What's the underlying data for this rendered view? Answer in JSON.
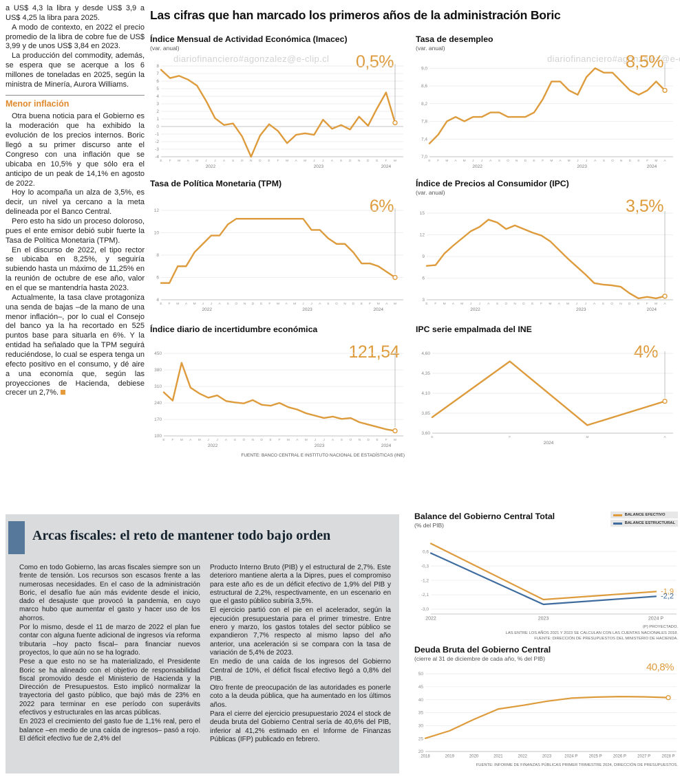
{
  "watermark": "diariofinanciero#agonzalez@e-clip.cl",
  "colors": {
    "accent_orange": "#DE9B3C",
    "steel_blue": "#3F6C9E",
    "subhead_orange": "#E08A2E",
    "box_bg": "#D9DBDD",
    "accent_bar_blue": "#56799B"
  },
  "main": {
    "title": "Las cifras que han marcado los primeros años de la administración Boric",
    "source": "FUENTE: BANCO CENTRAL E INSTITUTO NACIONAL DE ESTADÍSTICAS (INE)"
  },
  "left_article": {
    "paragraphs_top": [
      "a US$ 4,3 la libra y desde US$ 3,9 a US$ 4,25 la libra para 2025.",
      "A modo de contexto, en 2022 el precio promedio de la libra de cobre fue de US$ 3,99 y de unos US$ 3,84 en 2023.",
      "La producción del commodity, además, se espera que se acerque a los 6 millones de toneladas en 2025, según la ministra de Minería, Aurora Williams."
    ],
    "subhead": "Menor inflación",
    "paragraphs_bottom": [
      "Otra buena noticia para el Gobierno es la moderación que ha exhibido la evolución de los precios internos. Boric llegó a su primer discurso ante el Congreso con una inflación que se ubicaba en 10,5% y que sólo era el anticipo de un peak de 14,1% en agosto de 2022.",
      "Hoy lo acompaña un alza de 3,5%, es decir, un nivel ya cercano a la meta delineada por el Banco Central.",
      "Pero esto ha sido un proceso doloroso, pues el ente emisor debió subir fuerte la Tasa de Política Monetaria (TPM).",
      "En el discurso de 2022, el tipo rector se ubicaba en 8,25%, y seguiría subiendo hasta un máximo de 11,25% en la reunión de octubre de ese año, valor en el que se mantendría hasta 2023.",
      "Actualmente, la tasa clave protagoniza una senda de bajas –de la mano de una menor inflación–, por lo cual el Consejo del banco ya la ha recortado en 525 puntos base para situarla en 6%. Y la entidad ha señalado que la TPM seguirá reduciéndose, lo cual se espera tenga un efecto positivo en el consumo, y dé aire a una economía que, según las proyecciones de Hacienda, debiese crecer un 2,7%."
    ]
  },
  "fiscal": {
    "title": "Arcas fiscales: el reto de mantener todo bajo orden",
    "col1": [
      "Como en todo Gobierno, las arcas fiscales siempre son un frente de tensión. Los recursos son escasos frente a las numerosas necesidades. En el caso de la administración Boric, el desafío fue aún más evidente desde el inicio, dado el desajuste que provocó la pandemia, en cuyo marco hubo que aumentar el gasto y hacer uso de los ahorros.",
      "Por lo mismo, desde el 11 de marzo de 2022 el plan fue contar con alguna fuente adicional de ingresos vía reforma tributaria –hoy pacto fiscal– para financiar nuevos proyectos, lo que aún no se ha logrado.",
      "Pese a que esto no se ha materializado, el Presidente Boric se ha alineado con el objetivo de responsabilidad fiscal promovido desde el Ministerio de Hacienda y la Dirección de Presupuestos. Esto implicó normalizar la trayectoria del gasto público, que bajó más de 23% en 2022 para terminar en ese período con superávits efectivos y estructurales en las arcas públicas.",
      "En 2023 el crecimiento del gasto fue de 1,1% real, pero el balance –en medio de una caída de ingresos– pasó a rojo. El déficit efectivo fue de 2,4% del"
    ],
    "col2": [
      "Producto Interno Bruto (PIB) y el estructural de 2,7%. Este deterioro mantiene alerta a la Dipres, pues el compromiso para este año es de un déficit efectivo de 1,9% del PIB y estructural de 2,2%, respectivamente, en un escenario en que el gasto público subiría 3,5%.",
      "El ejercicio partió con el pie en el acelerador, según la ejecución presupuestaria para el primer trimestre. Entre enero y marzo, los gastos totales del sector público se expandieron 7,7% respecto al mismo lapso del año anterior, una aceleración si se compara con la tasa de variación de 5,4% de 2023.",
      "En medio de una caída de los ingresos del Gobierno Central de 10%, el déficit fiscal efectivo llegó a 0,8% del PIB.",
      "Otro frente de preocupación de las autoridades es ponerle coto a la deuda pública, que ha aumentado en los últimos años.",
      "Para el cierre del ejercicio presupuestario 2024 el stock de deuda bruta del Gobierno Central sería de 40,6% del PIB, inferior al 41,2% estimado en el Informe de Finanzas Públicas (IFP) publicado en febrero."
    ]
  },
  "chart_data": [
    {
      "type": "line",
      "title": "Índice Mensual de Actividad Económica (Imacec)",
      "subtitle": "(var. anual)",
      "highlight": "0,5%",
      "ylim": [
        -4,
        8
      ],
      "ytick_vals": [
        8,
        7,
        6,
        5,
        4,
        3,
        2,
        1,
        0,
        -1,
        -2,
        -3,
        -4
      ],
      "ytick_labels": [
        "8",
        "7",
        "6",
        "5",
        "4",
        "3",
        "2",
        "1",
        "0",
        "-1",
        "-2",
        "-3",
        "-4"
      ],
      "x_groups": [
        {
          "year": "2022",
          "months": [
            "E",
            "F",
            "M",
            "A",
            "M",
            "J",
            "J",
            "A",
            "S",
            "O",
            "N",
            "D"
          ]
        },
        {
          "year": "2023",
          "months": [
            "E",
            "F",
            "M",
            "A",
            "M",
            "J",
            "J",
            "A",
            "S",
            "O",
            "N",
            "D"
          ]
        },
        {
          "year": "2024",
          "months": [
            "E",
            "F",
            "M"
          ]
        }
      ],
      "guide": true,
      "series": [
        {
          "name": "Imacec var. anual",
          "color": "#DE9B3C",
          "width": 2.4,
          "values": [
            7.5,
            6.4,
            6.7,
            6.2,
            5.4,
            3.4,
            1.1,
            0.2,
            0.4,
            -1.3,
            -4.0,
            -1.2,
            0.3,
            -0.6,
            -2.2,
            -1.1,
            -0.9,
            -1.1,
            0.9,
            -0.3,
            0.2,
            -0.4,
            1.3,
            0.1,
            2.4,
            4.5,
            0.5
          ]
        }
      ]
    },
    {
      "type": "line",
      "title": "Tasa de desempleo",
      "subtitle": "(var. anual)",
      "highlight": "8,5%",
      "ylim": [
        7.0,
        9.05
      ],
      "ytick_vals": [
        9.0,
        8.6,
        8.2,
        7.8,
        7.4,
        7.0
      ],
      "ytick_labels": [
        "9,0",
        "8,6",
        "8,2",
        "7,8",
        "7,4",
        "7,0"
      ],
      "x_groups": [
        {
          "year": "2022",
          "months": [
            "E",
            "F",
            "M",
            "A",
            "M",
            "J",
            "J",
            "A",
            "S",
            "O",
            "N",
            "D"
          ]
        },
        {
          "year": "2023",
          "months": [
            "E",
            "F",
            "M",
            "A",
            "M",
            "J",
            "J",
            "A",
            "S",
            "O",
            "N",
            "D"
          ]
        },
        {
          "year": "2024",
          "months": [
            "E",
            "F",
            "M",
            "A"
          ]
        }
      ],
      "guide": true,
      "series": [
        {
          "name": "Tasa de desempleo",
          "color": "#DE9B3C",
          "width": 2.4,
          "values": [
            7.3,
            7.5,
            7.8,
            7.9,
            7.8,
            7.9,
            7.9,
            8.0,
            8.0,
            7.9,
            7.9,
            7.9,
            8.0,
            8.3,
            8.7,
            8.7,
            8.5,
            8.4,
            8.8,
            9.0,
            8.9,
            8.9,
            8.7,
            8.5,
            8.4,
            8.5,
            8.7,
            8.5
          ]
        }
      ]
    },
    {
      "type": "line",
      "title": "Tasa de Política Monetaria (TPM)",
      "highlight": "6%",
      "ylim": [
        4,
        12
      ],
      "ytick_vals": [
        12,
        10,
        8,
        6,
        4
      ],
      "ytick_labels": [
        "12",
        "10",
        "8",
        "6",
        "4"
      ],
      "x_groups": [
        {
          "year": "2022",
          "months": [
            "E",
            "F",
            "M",
            "A",
            "M",
            "J",
            "J",
            "A",
            "S",
            "O",
            "N",
            "D"
          ]
        },
        {
          "year": "2023",
          "months": [
            "E",
            "F",
            "M",
            "A",
            "M",
            "J",
            "J",
            "A",
            "S",
            "O",
            "N",
            "D"
          ]
        },
        {
          "year": "2024",
          "months": [
            "E",
            "F",
            "M",
            "A",
            "M"
          ]
        }
      ],
      "guide": true,
      "series": [
        {
          "name": "TPM",
          "color": "#DE9B3C",
          "width": 2.4,
          "values": [
            5.5,
            5.5,
            7.0,
            7.0,
            8.25,
            9.0,
            9.75,
            9.75,
            10.75,
            11.25,
            11.25,
            11.25,
            11.25,
            11.25,
            11.25,
            11.25,
            11.25,
            11.25,
            10.25,
            10.25,
            9.5,
            9.0,
            9.0,
            8.25,
            7.25,
            7.25,
            7.0,
            6.5,
            6.0
          ]
        }
      ]
    },
    {
      "type": "line",
      "title": "Índice de Precios al Consumidor (IPC)",
      "subtitle": "(var. anual)",
      "highlight": "3,5%",
      "ylim": [
        3,
        15
      ],
      "ytick_vals": [
        15,
        12,
        9,
        6,
        3
      ],
      "ytick_labels": [
        "15",
        "12",
        "9",
        "6",
        "3"
      ],
      "x_groups": [
        {
          "year": "2022",
          "months": [
            "E",
            "F",
            "M",
            "A",
            "M",
            "J",
            "J",
            "A",
            "S",
            "O",
            "N",
            "D"
          ]
        },
        {
          "year": "2023",
          "months": [
            "E",
            "F",
            "M",
            "A",
            "M",
            "J",
            "J",
            "A",
            "S",
            "O",
            "N",
            "D"
          ]
        },
        {
          "year": "2024",
          "months": [
            "E",
            "F",
            "M",
            "A"
          ]
        }
      ],
      "guide": true,
      "series": [
        {
          "name": "IPC var. anual",
          "color": "#DE9B3C",
          "width": 2.4,
          "values": [
            7.7,
            7.8,
            9.4,
            10.5,
            11.5,
            12.5,
            13.1,
            14.1,
            13.7,
            12.8,
            13.3,
            12.8,
            12.3,
            11.9,
            11.1,
            9.9,
            8.7,
            7.6,
            6.5,
            5.3,
            5.1,
            5.0,
            4.8,
            3.9,
            3.2,
            3.4,
            3.2,
            3.5
          ]
        }
      ]
    },
    {
      "type": "line",
      "title": "Índice diario de incertidumbre económica",
      "highlight": "121,54",
      "ylim": [
        100,
        450
      ],
      "ytick_vals": [
        450,
        380,
        310,
        240,
        170,
        100
      ],
      "ytick_labels": [
        "450",
        "380",
        "310",
        "240",
        "170",
        "100"
      ],
      "x_groups": [
        {
          "year": "2022",
          "months": [
            "E",
            "F",
            "M",
            "A",
            "M",
            "J",
            "J",
            "A",
            "S",
            "O",
            "N",
            "D"
          ]
        },
        {
          "year": "2023",
          "months": [
            "E",
            "F",
            "M",
            "A",
            "M",
            "J",
            "J",
            "A",
            "S",
            "O",
            "N",
            "D"
          ]
        },
        {
          "year": "2024",
          "months": [
            "E",
            "F",
            "M"
          ]
        }
      ],
      "guide": true,
      "series": [
        {
          "name": "Incertidumbre económica",
          "color": "#DE9B3C",
          "width": 2.4,
          "values": [
            285,
            250,
            410,
            305,
            280,
            262,
            272,
            248,
            242,
            238,
            252,
            232,
            228,
            240,
            222,
            212,
            196,
            186,
            176,
            182,
            172,
            176,
            158,
            148,
            138,
            128,
            121.54
          ]
        }
      ]
    },
    {
      "type": "line",
      "title": "IPC serie empalmada del INE",
      "highlight": "4%",
      "ylim": [
        3.6,
        4.6
      ],
      "ytick_vals": [
        4.6,
        4.35,
        4.1,
        3.85,
        3.6
      ],
      "ytick_labels": [
        "4,60",
        "4,35",
        "4,10",
        "3,85",
        "3,60"
      ],
      "x_groups": [
        {
          "year": "2024",
          "months": [
            "E",
            "F",
            "M",
            "A"
          ]
        }
      ],
      "guide": true,
      "series": [
        {
          "name": "IPC serie empalmada",
          "color": "#DE9B3C",
          "width": 2.4,
          "values": [
            3.8,
            4.5,
            3.7,
            4.0
          ]
        }
      ]
    },
    {
      "type": "line",
      "title": "Balance del Gobierno Central Total",
      "subtitle": "(% del PIB)",
      "ylim": [
        -3.3,
        1.25
      ],
      "ytick_vals": [
        0.6,
        -0.3,
        -1.2,
        -2.1,
        -3.0
      ],
      "ytick_labels": [
        "0,6",
        "-0,3",
        "-1,2",
        "-2,1",
        "-3,0"
      ],
      "categories": [
        "2022",
        "2023",
        "2024 P"
      ],
      "cat_font": 7,
      "margin_right": 32,
      "guide": false,
      "series": [
        {
          "name": "BALANCE EFECTIVO",
          "color": "#DE9B3C",
          "width": 2.2,
          "endpoint": false,
          "end_label": "-1,9",
          "values": [
            1.1,
            -2.4,
            -1.9
          ]
        },
        {
          "name": "BALANCE ESTRUCTURAL",
          "color": "#3F6C9E",
          "width": 2.2,
          "endpoint": false,
          "end_label": "-2,2",
          "values": [
            0.5,
            -2.7,
            -2.2
          ]
        }
      ],
      "source_lines": [
        "(P) PROYECTADO.",
        "LAS ENTRE LOS AÑOS 2021 Y 2023 SE CALCULAN CON LAS CUENTAS NACIONALES 2018.",
        "FUENTE: DIRECCIÓN DE PRESUPUESTOS DEL MINISTERIO DE HACIENDA."
      ]
    },
    {
      "type": "line",
      "title": "Deuda Bruta del Gobierno Central",
      "subtitle": "(cierre al 31 de diciembre de cada año, % del PIB)",
      "highlight": "40,8%",
      "ylim": [
        20,
        50
      ],
      "ytick_vals": [
        50,
        45,
        40,
        35,
        30,
        25,
        20
      ],
      "ytick_labels": [
        "50",
        "45",
        "40",
        "35",
        "30",
        "25",
        "20"
      ],
      "categories": [
        "2018",
        "2019",
        "2020",
        "2021",
        "2022",
        "2023",
        "2024 P",
        "2025 P",
        "2026 P",
        "2027 P",
        "2028 P"
      ],
      "cat_font": 6,
      "guide": false,
      "series": [
        {
          "name": "Deuda bruta",
          "color": "#DE9B3C",
          "width": 2.2,
          "values": [
            25.1,
            28.0,
            32.4,
            36.4,
            37.8,
            39.4,
            40.6,
            41.0,
            41.2,
            41.1,
            40.8
          ]
        }
      ],
      "source": "FUENTE: INFORME DE FINANZAS PÚBLICAS PRIMER TRIMESTRE 2024, DIRECCIÓN DE PRESUPUESTOS."
    }
  ]
}
